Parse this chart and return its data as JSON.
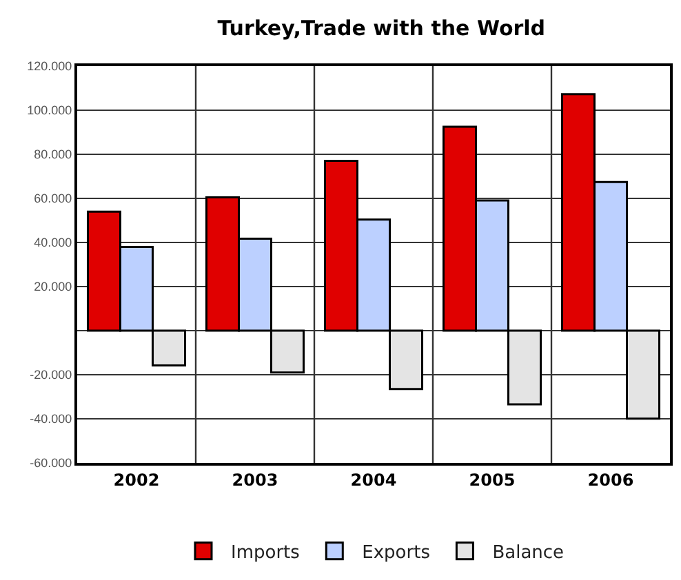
{
  "chart_data": {
    "type": "bar",
    "title": "Turkey,Trade with the World",
    "categories": [
      "2002",
      "2003",
      "2004",
      "2005",
      "2006"
    ],
    "series": [
      {
        "name": "Imports",
        "color": "#e00000",
        "values": [
          54000,
          60500,
          77000,
          92500,
          107300
        ]
      },
      {
        "name": "Exports",
        "color": "#bcd0ff",
        "values": [
          38000,
          41700,
          50400,
          59100,
          67400
        ]
      },
      {
        "name": "Balance",
        "color": "#e4e4e4",
        "values": [
          -15800,
          -19000,
          -26500,
          -33400,
          -39900
        ]
      }
    ],
    "ylim": [
      -60000,
      120000
    ],
    "yticks": [
      {
        "value": -60000,
        "label": "-60.000"
      },
      {
        "value": -40000,
        "label": "-40.000"
      },
      {
        "value": -20000,
        "label": "-20.000"
      },
      {
        "value": 0,
        "label": null
      },
      {
        "value": 20000,
        "label": "20.000"
      },
      {
        "value": 40000,
        "label": "40.000"
      },
      {
        "value": 60000,
        "label": "60.000"
      },
      {
        "value": 80000,
        "label": "80.000"
      },
      {
        "value": 100000,
        "label": "100.000"
      },
      {
        "value": 120000,
        "label": "120.000"
      }
    ],
    "grid": true,
    "legend": "bottom"
  }
}
